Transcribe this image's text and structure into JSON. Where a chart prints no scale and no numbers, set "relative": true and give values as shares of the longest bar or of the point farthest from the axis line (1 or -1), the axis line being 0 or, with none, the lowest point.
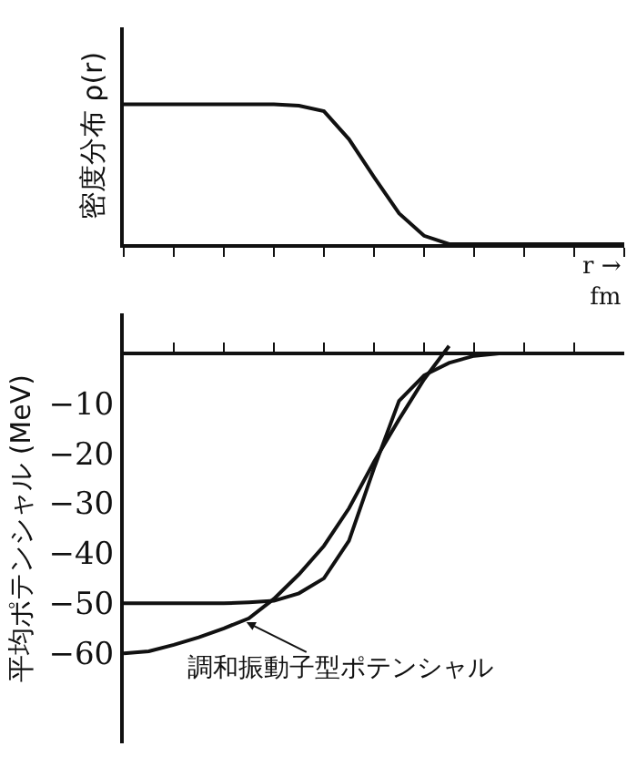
{
  "chart_data": [
    {
      "type": "line",
      "relative": true,
      "ylabel": "密度分布 ρ(r)",
      "xlabel": "r →\nfm",
      "categories": [
        null,
        null,
        null,
        null,
        null,
        null,
        null,
        null,
        null,
        null,
        null,
        null,
        null,
        null,
        null,
        null,
        null,
        null,
        null,
        null,
        null
      ],
      "tick_labels": false,
      "marker": "none",
      "line_style": "solid",
      "series": [
        {
          "color": "#111111",
          "values": [
            1,
            1,
            1,
            1,
            1,
            1,
            1,
            0.99,
            0.95,
            0.75,
            0.48,
            0.22,
            0.06,
            0,
            0,
            0,
            0,
            0,
            0,
            0,
            0
          ]
        }
      ]
    },
    {
      "type": "line",
      "ylabel": "平均ポテンシャル (MeV)",
      "ylim": [
        -78,
        8
      ],
      "categories": [
        null,
        null,
        null,
        null,
        null,
        null,
        null,
        null,
        null,
        null,
        null,
        null,
        null,
        null,
        null,
        null,
        null,
        null,
        null,
        null,
        null
      ],
      "yticks": [
        {
          "value": -10,
          "label": "−10"
        },
        {
          "value": -20,
          "label": "−20"
        },
        {
          "value": -30,
          "label": "−30"
        },
        {
          "value": -40,
          "label": "−40"
        },
        {
          "value": -50,
          "label": "−50"
        },
        {
          "value": -60,
          "label": "−60"
        }
      ],
      "tick_labels": "y",
      "marker": "none",
      "line_style": "solid",
      "annotations": [
        "調和振動子型ポテンシャル"
      ],
      "series": [
        {
          "color": "#111111",
          "values": [
            -50,
            -50,
            -50,
            -50,
            -50,
            -49.8,
            -49.5,
            -48,
            -45,
            -37.5,
            -23,
            -9.5,
            -4.4,
            -1.9,
            -0.5,
            0,
            0,
            0,
            0,
            0,
            0
          ]
        },
        {
          "color": "#111111",
          "values": [
            -60,
            -59.6,
            -58.3,
            -56.8,
            -55,
            -53,
            -49.1,
            -44.2,
            -38.5,
            -31,
            -21.7,
            -13.2,
            -5.2,
            1.5,
            null,
            null,
            null,
            null,
            null,
            null,
            null
          ]
        }
      ]
    }
  ]
}
